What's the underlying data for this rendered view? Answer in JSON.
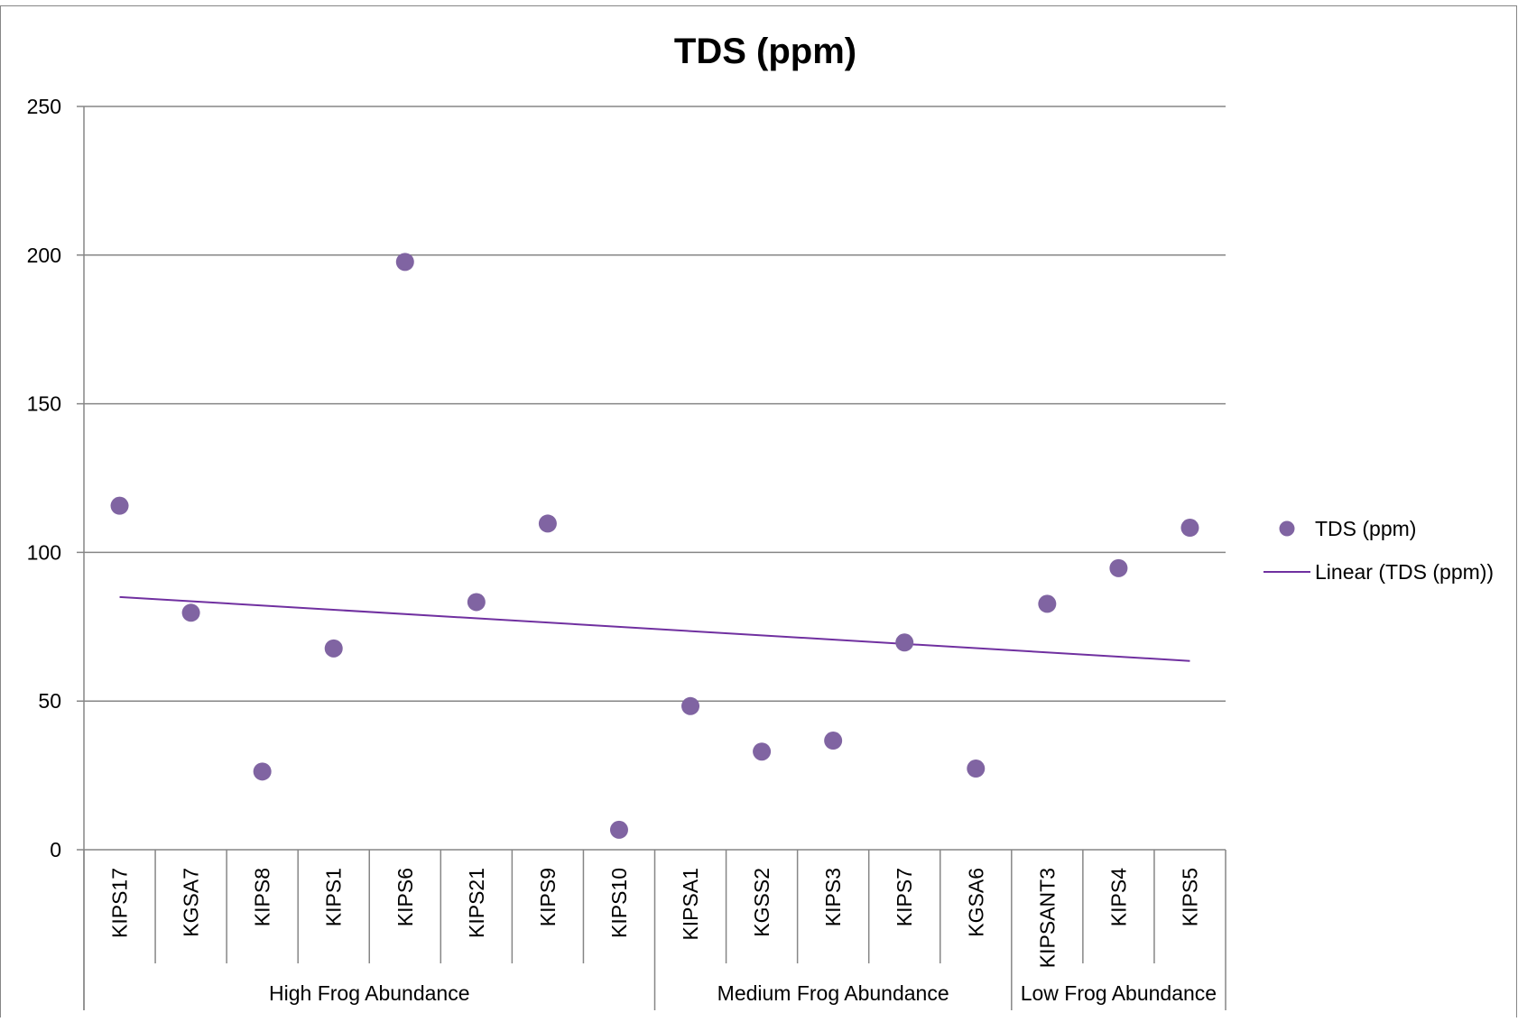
{
  "chart_data": {
    "type": "scatter",
    "title": "TDS (ppm)",
    "xlabel": "",
    "ylabel": "",
    "ylim": [
      0,
      250
    ],
    "yticks": [
      0,
      50,
      100,
      150,
      200,
      250
    ],
    "grid": true,
    "legend_position": "right",
    "categories": [
      "KIPS17",
      "KGSA7",
      "KIPS8",
      "KIPS1",
      "KIPS6",
      "KIPS21",
      "KIPS9",
      "KIPS10",
      "KIPSA1",
      "KGSS2",
      "KIPS3",
      "KIPS7",
      "KGSA6",
      "KIPSANT3",
      "KIPS4",
      "KIPS5"
    ],
    "groups": [
      {
        "label": "High Frog Abundance",
        "start": 0,
        "count": 8
      },
      {
        "label": "Medium Frog Abundance",
        "start": 8,
        "count": 5
      },
      {
        "label": "Low Frog Abundance",
        "start": 13,
        "count": 3
      }
    ],
    "series": [
      {
        "name": "TDS (ppm)",
        "values": [
          115.7,
          79.7,
          26.3,
          67.7,
          197.7,
          83.3,
          109.7,
          6.7,
          48.3,
          33.0,
          36.7,
          69.7,
          27.3,
          82.7,
          94.7,
          108.3
        ],
        "color": "#8064a2"
      }
    ],
    "trendline": {
      "name": "Linear (TDS (ppm))",
      "type": "linear",
      "start_value": 85.0,
      "end_value": 63.5,
      "color": "#7030a0"
    }
  }
}
